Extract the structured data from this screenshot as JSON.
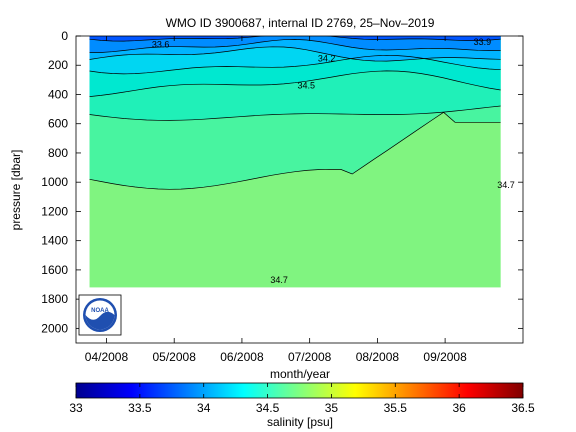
{
  "figure": {
    "title": "WMO ID 3900687, internal ID 2769, 25–Nov–2019"
  },
  "chart_data": {
    "type": "heatmap",
    "subtype": "filled-contour-section",
    "title": "WMO ID 3900687, internal ID 2769, 25–Nov–2019",
    "xlabel": "month/year",
    "ylabel": "pressure [dbar]",
    "x_ticks": [
      "04/2008",
      "05/2008",
      "06/2008",
      "07/2008",
      "08/2008",
      "09/2008"
    ],
    "x_tick_months": [
      0,
      1,
      2,
      3,
      4,
      5
    ],
    "x_range_months": [
      -0.45,
      6.15
    ],
    "data_x_range_months": [
      -0.25,
      5.82
    ],
    "y_ticks": [
      0,
      200,
      400,
      600,
      800,
      1000,
      1200,
      1400,
      1600,
      1800,
      2000
    ],
    "ylim": [
      2100,
      0
    ],
    "y_reversed": true,
    "grid": false,
    "contour_labels": [
      {
        "text": "33.6",
        "month": 0.8,
        "pressure": 80
      },
      {
        "text": "34.2",
        "month": 3.25,
        "pressure": 175
      },
      {
        "text": "34.5",
        "month": 2.95,
        "pressure": 360
      },
      {
        "text": "34.7",
        "month": 2.55,
        "pressure": 1690
      },
      {
        "text": "34.7",
        "month": 5.9,
        "pressure": 1040
      },
      {
        "text": "33.9",
        "month": 5.55,
        "pressure": 60
      }
    ],
    "bands": [
      {
        "range": "<33.6",
        "color": "#0055ff"
      },
      {
        "range": "33.6-33.8",
        "color": "#008cff"
      },
      {
        "range": "33.8-34.0",
        "color": "#00b4ff"
      },
      {
        "range": "34.0-34.2",
        "color": "#00d6f2"
      },
      {
        "range": "34.2-34.35",
        "color": "#00e8d0"
      },
      {
        "range": "34.35-34.5",
        "color": "#20f0b8"
      },
      {
        "range": "34.5-34.7",
        "color": "#48f4a0"
      },
      {
        "range": ">34.7",
        "color": "#80f480"
      }
    ],
    "colorbar": {
      "label": "salinity [psu]",
      "min": 33,
      "max": 36.5,
      "ticks": [
        "33",
        "33.5",
        "34",
        "34.5",
        "35",
        "35.5",
        "36",
        "36.5"
      ]
    }
  },
  "logo": {
    "text": "NOAA",
    "icon": "noaa-logo-icon"
  }
}
